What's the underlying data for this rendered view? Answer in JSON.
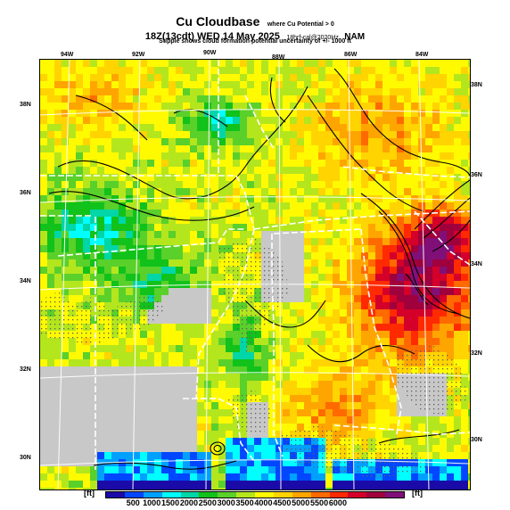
{
  "header": {
    "title": "Cu Cloudbase",
    "title_note": "where Cu Potential > 0",
    "subtitle": "18Z(13cdt) WED 14 May 2025",
    "run_info": "18hrf-cal@2020Hz",
    "model": "NAM",
    "note": "Stipple shows cloud formation potential uncertainty of +/- 1000 ft"
  },
  "map": {
    "lat_labels_left": [
      "38N",
      "36N",
      "34N",
      "32N",
      "30N"
    ],
    "lat_labels_right": [
      "38N",
      "36N",
      "34N",
      "32N",
      "30N"
    ],
    "lon_labels_top": [
      "94W",
      "92W",
      "90W",
      "88W",
      "86W",
      "84W"
    ]
  },
  "colorbar": {
    "unit_left": "[ft]",
    "unit_right": "[ft]",
    "ticks": [
      "500",
      "1000",
      "1500",
      "2000",
      "2500",
      "3000",
      "3500",
      "4000",
      "4500",
      "5000",
      "5500",
      "6000"
    ],
    "colors": [
      "#1a0aa8",
      "#0047ff",
      "#00a0ff",
      "#00ffff",
      "#00d6a8",
      "#11c21b",
      "#5ad02a",
      "#b4e61e",
      "#fffa00",
      "#ffd400",
      "#ffa500",
      "#ff6a00",
      "#ff2a00",
      "#d4002a",
      "#a0003c",
      "#801078"
    ],
    "no_cloud_color": "#c8c8c8",
    "stipple_color": "#606060"
  }
}
